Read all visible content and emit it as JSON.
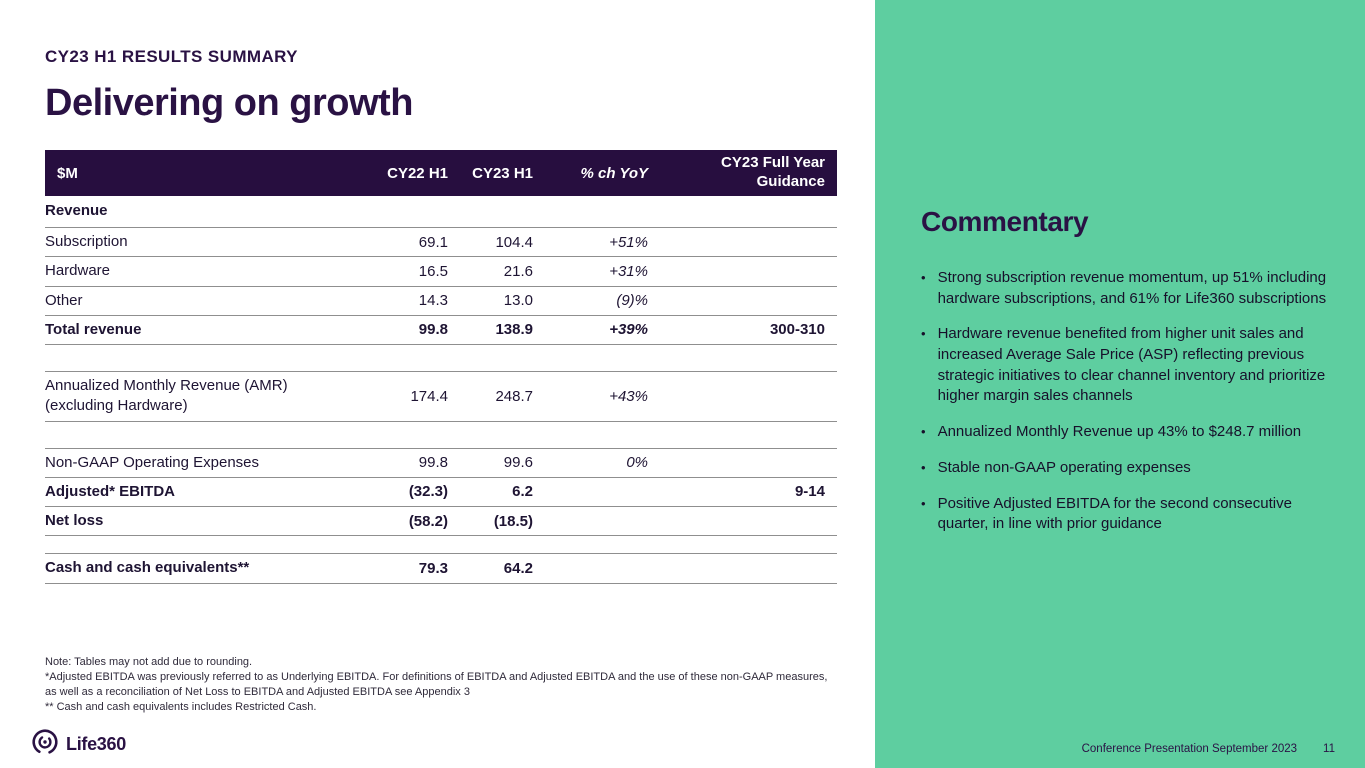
{
  "slide": {
    "eyebrow": "CY23 H1 RESULTS SUMMARY",
    "title": "Delivering on growth",
    "logo_text": "Life360",
    "footer_text": "Conference Presentation September 2023",
    "page_number": "11"
  },
  "colors": {
    "purple_dark": "#270E3F",
    "green_panel": "#5ECEA0",
    "row_border": "#8f8f8f"
  },
  "table": {
    "headers": {
      "metric": "$M",
      "cy22": "CY22 H1",
      "cy23": "CY23 H1",
      "yoy": "% ch YoY",
      "guidance": "CY23 Full Year\nGuidance"
    },
    "rows": [
      {
        "type": "section",
        "label": "Revenue",
        "cy22": "",
        "cy23": "",
        "yoy": "",
        "guidance": ""
      },
      {
        "type": "data",
        "label": "Subscription",
        "cy22": "69.1",
        "cy23": "104.4",
        "yoy": "+51%",
        "guidance": ""
      },
      {
        "type": "data",
        "label": "Hardware",
        "cy22": "16.5",
        "cy23": "21.6",
        "yoy": "+31%",
        "guidance": ""
      },
      {
        "type": "data",
        "label": "Other",
        "cy22": "14.3",
        "cy23": "13.0",
        "yoy": "(9)%",
        "guidance": ""
      },
      {
        "type": "data",
        "bold": true,
        "label": "Total revenue",
        "cy22": "99.8",
        "cy23": "138.9",
        "yoy": "+39%",
        "guidance": "300-310"
      },
      {
        "type": "spacer"
      },
      {
        "type": "data",
        "label": "Annualized Monthly Revenue (AMR)\n(excluding Hardware)",
        "cy22": "174.4",
        "cy23": "248.7",
        "yoy": "+43%",
        "guidance": ""
      },
      {
        "type": "spacer"
      },
      {
        "type": "data",
        "label": "Non-GAAP Operating Expenses",
        "cy22": "99.8",
        "cy23": "99.6",
        "yoy": "0%",
        "guidance": ""
      },
      {
        "type": "data",
        "bold": true,
        "label": "Adjusted* EBITDA",
        "cy22": "(32.3)",
        "cy23": "6.2",
        "yoy": "",
        "guidance": "9-14"
      },
      {
        "type": "data",
        "bold": true,
        "label": "Net loss",
        "cy22": "(58.2)",
        "cy23": "(18.5)",
        "yoy": "",
        "guidance": ""
      },
      {
        "type": "spacer_small"
      },
      {
        "type": "data",
        "bold": true,
        "label": "Cash and cash equivalents**",
        "cy22": "79.3",
        "cy23": "64.2",
        "yoy": "",
        "guidance": ""
      }
    ]
  },
  "notes": [
    "Note: Tables may not add due to rounding.",
    "*Adjusted EBITDA was previously referred to as Underlying EBITDA. For definitions of EBITDA and Adjusted EBITDA and the use of these non-GAAP measures, as well as a reconciliation of Net Loss to EBITDA and Adjusted EBITDA see Appendix 3",
    "** Cash and cash equivalents includes Restricted Cash."
  ],
  "commentary": {
    "title": "Commentary",
    "bullets": [
      "Strong subscription revenue momentum, up 51% including hardware subscriptions, and 61% for Life360 subscriptions",
      "Hardware revenue benefited from higher unit sales and increased Average Sale Price (ASP) reflecting previous strategic initiatives to clear channel inventory and prioritize higher margin sales channels",
      "Annualized Monthly Revenue up 43% to $248.7 million",
      "Stable non-GAAP operating expenses",
      "Positive Adjusted EBITDA for the second consecutive quarter, in line with prior guidance"
    ]
  }
}
